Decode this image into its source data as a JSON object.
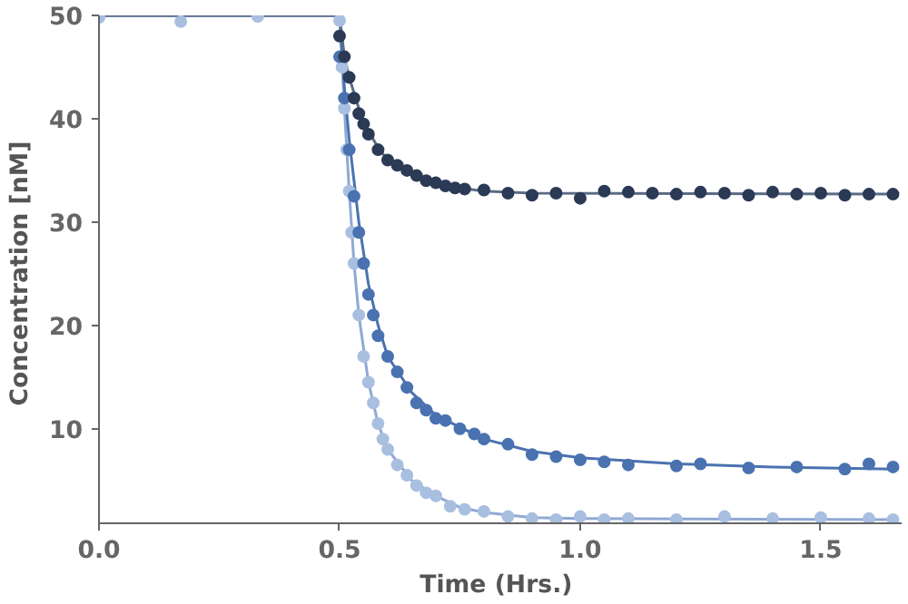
{
  "chart_data": {
    "type": "scatter",
    "xlabel": "Time  (Hrs.)",
    "ylabel": "Concentration  [nM]",
    "xlim": [
      0,
      1.668
    ],
    "ylim": [
      0.85,
      50
    ],
    "xticks": [
      {
        "value": 0,
        "label": "0.0"
      },
      {
        "value": 0.5,
        "label": "0.5"
      },
      {
        "value": 1,
        "label": "1.0"
      },
      {
        "value": 1.5,
        "label": "1.5"
      }
    ],
    "yticks": [
      10,
      20,
      30,
      40,
      50
    ],
    "grid": false,
    "marker": "circle",
    "series": [
      {
        "type": "line",
        "marker": "none",
        "color": "#8fa9d4",
        "x": [
          0,
          0.5,
          0.51,
          0.52,
          0.53,
          0.54,
          0.56,
          0.58,
          0.6,
          0.65,
          0.7,
          0.75,
          0.8,
          0.9,
          1.0,
          1.65
        ],
        "values": [
          50,
          50,
          41,
          33,
          26,
          21,
          14.5,
          10.5,
          8,
          5,
          3.5,
          2.4,
          1.9,
          1.4,
          1.3,
          1.2
        ]
      },
      {
        "type": "line",
        "marker": "none",
        "color": "#4a72b0",
        "x": [
          0,
          0.5,
          0.51,
          0.52,
          0.54,
          0.56,
          0.58,
          0.6,
          0.65,
          0.7,
          0.8,
          0.9,
          1.0,
          1.2,
          1.4,
          1.65
        ],
        "values": [
          50,
          50,
          43,
          38,
          30,
          24,
          20,
          17,
          13.5,
          11.3,
          9,
          7.8,
          7.2,
          6.6,
          6.3,
          6.1
        ]
      },
      {
        "type": "line",
        "marker": "none",
        "color": "#5b6b85",
        "x": [
          0,
          0.5,
          0.51,
          0.52,
          0.54,
          0.56,
          0.58,
          0.6,
          0.65,
          0.7,
          0.8,
          0.9,
          1.65
        ],
        "values": [
          50,
          50,
          46,
          44,
          41,
          38.8,
          37.2,
          36,
          34.5,
          33.6,
          33,
          32.8,
          32.7
        ]
      },
      {
        "color": "#a9bfe0",
        "x": [
          0,
          0.17,
          0.33,
          0.5,
          0.505,
          0.51,
          0.515,
          0.52,
          0.525,
          0.53,
          0.54,
          0.55,
          0.56,
          0.57,
          0.58,
          0.59,
          0.6,
          0.62,
          0.64,
          0.66,
          0.68,
          0.7,
          0.73,
          0.76,
          0.8,
          0.85,
          0.9,
          0.95,
          1.0,
          1.05,
          1.1,
          1.2,
          1.3,
          1.4,
          1.5,
          1.6,
          1.65
        ],
        "values": [
          49.8,
          49.4,
          49.9,
          49.5,
          45,
          41,
          37,
          33,
          29,
          26,
          21,
          17,
          14.5,
          12.5,
          10.5,
          9,
          8,
          6.5,
          5.5,
          4.5,
          3.8,
          3.5,
          2.5,
          2.2,
          2,
          1.5,
          1.3,
          1.2,
          1.5,
          1.2,
          1.3,
          1.2,
          1.5,
          1.3,
          1.4,
          1.3,
          1.2
        ]
      },
      {
        "color": "#4a72b0",
        "x": [
          0.5,
          0.51,
          0.52,
          0.53,
          0.54,
          0.55,
          0.56,
          0.57,
          0.58,
          0.6,
          0.62,
          0.64,
          0.66,
          0.68,
          0.7,
          0.72,
          0.75,
          0.78,
          0.8,
          0.85,
          0.9,
          0.95,
          1.0,
          1.05,
          1.1,
          1.2,
          1.25,
          1.35,
          1.45,
          1.55,
          1.6,
          1.65
        ],
        "values": [
          46,
          42,
          37,
          32.5,
          29,
          26,
          23,
          21,
          19,
          17,
          15.5,
          14,
          12.5,
          11.8,
          11,
          10.8,
          10,
          9.5,
          9,
          8.5,
          7.5,
          7.3,
          7,
          6.8,
          6.5,
          6.4,
          6.6,
          6.2,
          6.3,
          6.1,
          6.6,
          6.3
        ]
      },
      {
        "color": "#2b3a55",
        "x": [
          0.5,
          0.51,
          0.52,
          0.53,
          0.54,
          0.55,
          0.56,
          0.58,
          0.6,
          0.62,
          0.64,
          0.66,
          0.68,
          0.7,
          0.72,
          0.74,
          0.76,
          0.8,
          0.85,
          0.9,
          0.95,
          1.0,
          1.05,
          1.1,
          1.15,
          1.2,
          1.25,
          1.3,
          1.35,
          1.4,
          1.45,
          1.5,
          1.55,
          1.6,
          1.65
        ],
        "values": [
          48,
          46,
          44,
          42,
          40.5,
          39.5,
          38.5,
          37,
          36,
          35.5,
          35,
          34.5,
          34,
          33.8,
          33.5,
          33.3,
          33.2,
          33.1,
          32.8,
          32.6,
          32.8,
          32.3,
          33,
          32.9,
          32.8,
          32.7,
          32.9,
          32.8,
          32.6,
          32.9,
          32.7,
          32.8,
          32.6,
          32.7,
          32.7
        ]
      }
    ]
  }
}
